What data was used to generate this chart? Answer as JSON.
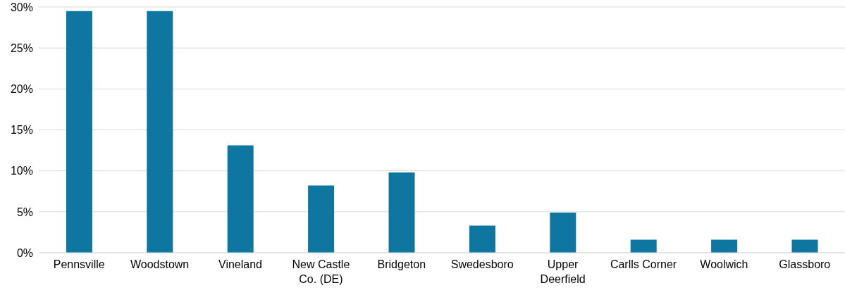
{
  "chart_data": {
    "type": "bar",
    "categories": [
      "Pennsville",
      "Woodstown",
      "Vineland",
      "New Castle Co. (DE)",
      "Bridgeton",
      "Swedesboro",
      "Upper Deerfield",
      "Carlls Corner",
      "Woolwich",
      "Glassboro"
    ],
    "values": [
      29.5,
      29.5,
      13.1,
      8.2,
      9.8,
      3.3,
      4.9,
      1.6,
      1.6,
      1.6
    ],
    "color": "#0e76a0",
    "ylim": [
      0,
      30
    ],
    "yticks": [
      {
        "value": 0,
        "label": "0%"
      },
      {
        "value": 5,
        "label": "5%"
      },
      {
        "value": 10,
        "label": "10%"
      },
      {
        "value": 15,
        "label": "15%"
      },
      {
        "value": 20,
        "label": "20%"
      },
      {
        "value": 25,
        "label": "25%"
      },
      {
        "value": 30,
        "label": "30%"
      }
    ],
    "grid": "y"
  }
}
